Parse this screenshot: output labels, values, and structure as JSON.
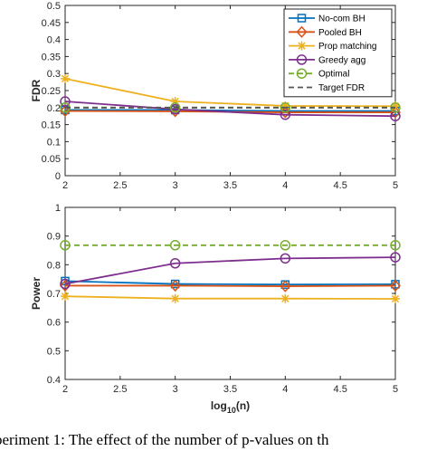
{
  "caption": "periment 1: The effect of the number of p-values on th",
  "chart_data": [
    {
      "type": "line",
      "title": "",
      "xlabel": "",
      "ylabel": "FDR",
      "xlim": [
        2,
        5
      ],
      "ylim": [
        0,
        0.5
      ],
      "xticks": [
        "2",
        "2.5",
        "3",
        "3.5",
        "4",
        "4.5",
        "5"
      ],
      "yticks": [
        "0",
        "0.05",
        "0.1",
        "0.15",
        "0.2",
        "0.25",
        "0.3",
        "0.35",
        "0.4",
        "0.45",
        "0.5"
      ],
      "x": [
        2,
        3,
        4,
        5
      ],
      "grid": false,
      "legend": "top-right",
      "series": [
        {
          "name": "No-com BH",
          "values": [
            0.193,
            0.193,
            0.19,
            0.19
          ],
          "color": "#0072BD",
          "marker": "square",
          "dash": "solid"
        },
        {
          "name": "Pooled BH",
          "values": [
            0.19,
            0.189,
            0.186,
            0.186
          ],
          "color": "#D95319",
          "marker": "diamond",
          "dash": "solid"
        },
        {
          "name": "Prop matching",
          "values": [
            0.285,
            0.218,
            0.205,
            0.204
          ],
          "color": "#EDB120",
          "marker": "star",
          "dash": "solid"
        },
        {
          "name": "Greedy agg",
          "values": [
            0.218,
            0.195,
            0.179,
            0.175
          ],
          "color": "#7E2F8E",
          "marker": "circle",
          "dash": "solid"
        },
        {
          "name": "Optimal",
          "values": [
            0.2,
            0.2,
            0.2,
            0.2
          ],
          "color": "#77AC30",
          "marker": "circle",
          "dash": "dashed"
        },
        {
          "name": "Target FDR",
          "values": [
            0.2,
            0.2,
            0.2,
            0.2
          ],
          "color": "#555555",
          "marker": "none",
          "dash": "dashed"
        }
      ]
    },
    {
      "type": "line",
      "title": "",
      "xlabel": "log10(n)",
      "ylabel": "Power",
      "xlim": [
        2,
        5
      ],
      "ylim": [
        0.4,
        1
      ],
      "xticks": [
        "2",
        "2.5",
        "3",
        "3.5",
        "4",
        "4.5",
        "5"
      ],
      "yticks": [
        "0.4",
        "0.5",
        "0.6",
        "0.7",
        "0.8",
        "0.9",
        "1"
      ],
      "x": [
        2,
        3,
        4,
        5
      ],
      "grid": false,
      "series": [
        {
          "name": "No-com BH",
          "values": [
            0.743,
            0.733,
            0.731,
            0.732
          ],
          "color": "#0072BD",
          "marker": "square",
          "dash": "solid"
        },
        {
          "name": "Pooled BH",
          "values": [
            0.727,
            0.727,
            0.725,
            0.727
          ],
          "color": "#D95319",
          "marker": "diamond",
          "dash": "solid"
        },
        {
          "name": "Prop matching",
          "values": [
            0.69,
            0.682,
            0.682,
            0.681
          ],
          "color": "#EDB120",
          "marker": "star",
          "dash": "solid"
        },
        {
          "name": "Greedy agg",
          "values": [
            0.733,
            0.805,
            0.822,
            0.826
          ],
          "color": "#7E2F8E",
          "marker": "circle",
          "dash": "solid"
        },
        {
          "name": "Optimal",
          "values": [
            0.868,
            0.868,
            0.868,
            0.868
          ],
          "color": "#77AC30",
          "marker": "circle",
          "dash": "dashed"
        }
      ]
    }
  ]
}
